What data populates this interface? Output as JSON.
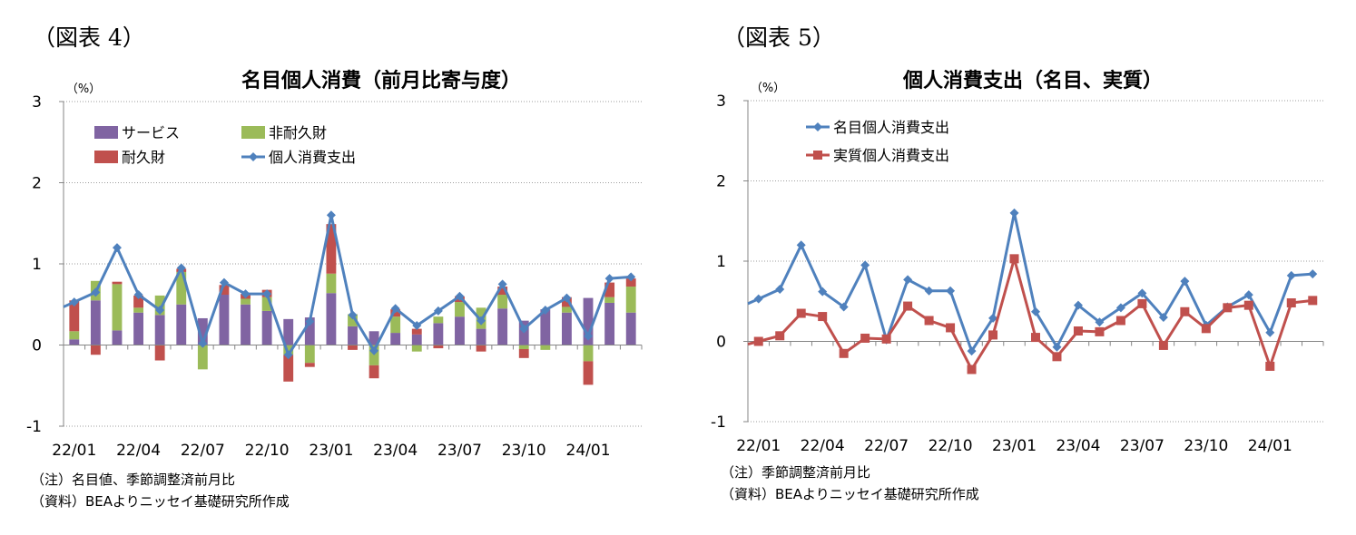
{
  "colors": {
    "services": "#8064A2",
    "nondurable": "#9BBB59",
    "durable": "#C0504D",
    "pce": "#4F81BD",
    "real": "#C0504D"
  },
  "figure4": {
    "fig_label": "（図表 4）",
    "notes": [
      "（注）名目値、季節調整済前月比",
      "（資料）BEAよりニッセイ基礎研究所作成"
    ]
  },
  "figure5": {
    "fig_label": "（図表 5）",
    "notes": [
      "（注）季節調整済前月比",
      "（資料）BEAよりニッセイ基礎研究所作成"
    ]
  },
  "chart_data": [
    {
      "type": "bar",
      "stacked": true,
      "title": "名目個人消費（前月比寄与度）",
      "unit_label": "（%）",
      "ylim": [
        -1,
        3
      ],
      "yticks": [
        -1,
        0,
        1,
        2,
        3
      ],
      "grid": true,
      "legend_placement": "top-left",
      "x_tick_labels": [
        "22/01",
        "22/04",
        "22/07",
        "22/10",
        "23/01",
        "23/04",
        "23/07",
        "23/10",
        "24/01"
      ],
      "tick_every": 3,
      "categories": [
        "22/01",
        "22/02",
        "22/03",
        "22/04",
        "22/05",
        "22/06",
        "22/07",
        "22/08",
        "22/09",
        "22/10",
        "22/11",
        "22/12",
        "23/01",
        "23/02",
        "23/03",
        "23/04",
        "23/05",
        "23/06",
        "23/07",
        "23/08",
        "23/09",
        "23/10",
        "23/11",
        "23/12",
        "24/01",
        "24/02",
        "24/03"
      ],
      "series": [
        {
          "name": "サービス",
          "color_key": "services",
          "values": [
            0.07,
            0.55,
            0.18,
            0.4,
            0.37,
            0.5,
            0.33,
            0.62,
            0.5,
            0.42,
            0.32,
            0.34,
            0.64,
            0.23,
            0.17,
            0.15,
            0.13,
            0.27,
            0.35,
            0.2,
            0.45,
            0.3,
            0.44,
            0.4,
            0.58,
            0.52,
            0.4
          ]
        },
        {
          "name": "非耐久財",
          "color_key": "nondurable",
          "values": [
            0.1,
            0.24,
            0.57,
            0.06,
            0.24,
            0.4,
            -0.3,
            0.0,
            0.07,
            0.17,
            -0.12,
            -0.22,
            0.24,
            0.15,
            -0.25,
            0.2,
            -0.08,
            0.08,
            0.18,
            0.26,
            0.17,
            -0.05,
            -0.06,
            0.07,
            -0.2,
            0.07,
            0.32
          ]
        },
        {
          "name": "耐久財",
          "color_key": "durable",
          "values": [
            0.38,
            -0.12,
            0.03,
            0.15,
            -0.19,
            0.04,
            0.0,
            0.12,
            0.06,
            0.09,
            -0.33,
            -0.05,
            0.61,
            -0.06,
            -0.16,
            0.09,
            0.07,
            -0.04,
            0.07,
            -0.08,
            0.1,
            -0.11,
            0.0,
            0.12,
            -0.29,
            0.18,
            0.1
          ]
        },
        {
          "name": "個人消費支出",
          "color_key": "pce",
          "kind": "line",
          "values": [
            0.53,
            0.65,
            1.2,
            0.62,
            0.43,
            0.95,
            0.02,
            0.77,
            0.63,
            0.63,
            -0.12,
            0.29,
            1.6,
            0.37,
            -0.07,
            0.45,
            0.24,
            0.42,
            0.6,
            0.3,
            0.75,
            0.2,
            0.43,
            0.58,
            0.11,
            0.82,
            0.84
          ]
        }
      ]
    },
    {
      "type": "line",
      "title": "個人消費支出（名目、実質）",
      "unit_label": "（%）",
      "ylim": [
        -1,
        3
      ],
      "yticks": [
        -1,
        0,
        1,
        2,
        3
      ],
      "grid": true,
      "legend_placement": "top-left",
      "x_tick_labels": [
        "22/01",
        "22/04",
        "22/07",
        "22/10",
        "23/01",
        "23/04",
        "23/07",
        "23/10",
        "24/01"
      ],
      "tick_every": 3,
      "categories": [
        "22/01",
        "22/02",
        "22/03",
        "22/04",
        "22/05",
        "22/06",
        "22/07",
        "22/08",
        "22/09",
        "22/10",
        "22/11",
        "22/12",
        "23/01",
        "23/02",
        "23/03",
        "23/04",
        "23/05",
        "23/06",
        "23/07",
        "23/08",
        "23/09",
        "23/10",
        "23/11",
        "23/12",
        "24/01",
        "24/02",
        "24/03"
      ],
      "series": [
        {
          "name": "名目個人消費支出",
          "color_key": "pce",
          "marker": "diamond",
          "values": [
            0.53,
            0.65,
            1.2,
            0.62,
            0.43,
            0.95,
            0.02,
            0.77,
            0.63,
            0.63,
            -0.12,
            0.29,
            1.6,
            0.37,
            -0.07,
            0.45,
            0.24,
            0.42,
            0.6,
            0.3,
            0.75,
            0.2,
            0.43,
            0.58,
            0.11,
            0.82,
            0.84
          ]
        },
        {
          "name": "実質個人消費支出",
          "color_key": "real",
          "marker": "square",
          "values": [
            0.0,
            0.07,
            0.35,
            0.31,
            -0.15,
            0.04,
            0.03,
            0.44,
            0.26,
            0.17,
            -0.35,
            0.08,
            1.03,
            0.05,
            -0.19,
            0.13,
            0.12,
            0.26,
            0.47,
            -0.05,
            0.37,
            0.16,
            0.42,
            0.45,
            -0.31,
            0.48,
            0.51
          ]
        }
      ]
    }
  ]
}
